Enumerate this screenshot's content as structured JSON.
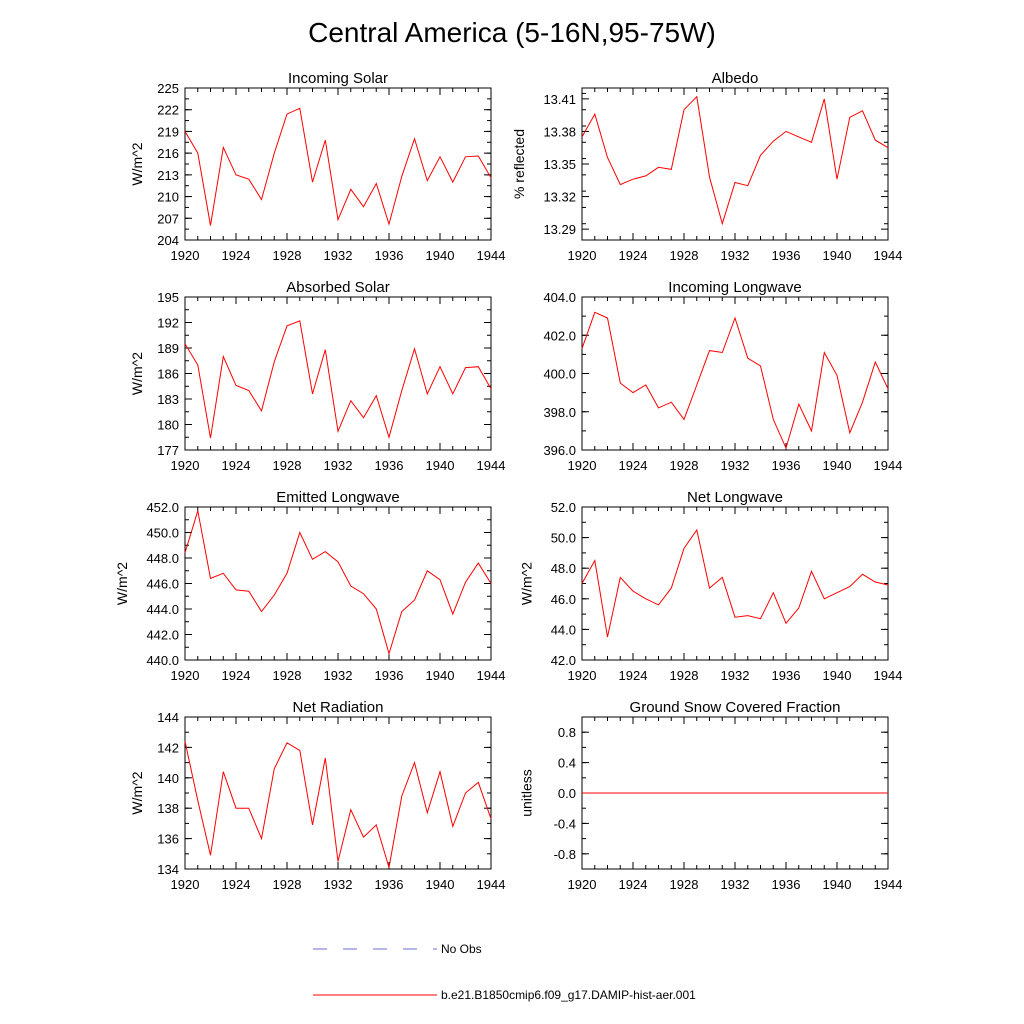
{
  "figure": {
    "title": "Central America (5-16N,95-75W)",
    "line_color": "#ff0000",
    "obs_color": "#6b6bd6"
  },
  "legend": {
    "obs_label": "No Obs",
    "model_label": "b.e21.B1850cmip6.f09_g17.DAMIP-hist-aer.001"
  },
  "chart_data": [
    {
      "type": "line",
      "title": "Incoming Solar",
      "ylabel": "W/m^2",
      "xlim": [
        1920,
        1944
      ],
      "ylim": [
        204,
        225
      ],
      "yticks": [
        "204",
        "207",
        "210",
        "213",
        "216",
        "219",
        "222",
        "225"
      ],
      "xticks": [
        "1920",
        "1924",
        "1928",
        "1932",
        "1936",
        "1940",
        "1944"
      ],
      "x": [
        1920,
        1921,
        1922,
        1923,
        1924,
        1925,
        1926,
        1927,
        1928,
        1929,
        1930,
        1931,
        1932,
        1933,
        1934,
        1935,
        1936,
        1937,
        1938,
        1939,
        1940,
        1941,
        1942,
        1943,
        1944
      ],
      "values": [
        219.0,
        216.0,
        206.0,
        216.8,
        213.0,
        212.4,
        209.6,
        216.0,
        221.4,
        222.2,
        212.0,
        217.8,
        206.8,
        211.0,
        208.6,
        211.8,
        206.2,
        212.8,
        218.0,
        212.2,
        215.5,
        212.0,
        215.5,
        215.6,
        212.6
      ]
    },
    {
      "type": "line",
      "title": "Albedo",
      "ylabel": "% reflected",
      "xlim": [
        1920,
        1944
      ],
      "ylim": [
        13.28,
        13.42
      ],
      "yticks": [
        "13.29",
        "13.32",
        "13.35",
        "13.38",
        "13.41"
      ],
      "xticks": [
        "1920",
        "1924",
        "1928",
        "1932",
        "1936",
        "1940",
        "1944"
      ],
      "x": [
        1920,
        1921,
        1922,
        1923,
        1924,
        1925,
        1926,
        1927,
        1928,
        1929,
        1930,
        1931,
        1932,
        1933,
        1934,
        1935,
        1936,
        1937,
        1938,
        1939,
        1940,
        1941,
        1942,
        1943,
        1944
      ],
      "values": [
        13.375,
        13.396,
        13.356,
        13.331,
        13.336,
        13.339,
        13.347,
        13.345,
        13.4,
        13.412,
        13.338,
        13.295,
        13.333,
        13.33,
        13.358,
        13.371,
        13.38,
        13.375,
        13.37,
        13.41,
        13.336,
        13.393,
        13.399,
        13.372,
        13.365
      ]
    },
    {
      "type": "line",
      "title": "Absorbed Solar",
      "ylabel": "W/m^2",
      "xlim": [
        1920,
        1944
      ],
      "ylim": [
        177,
        195
      ],
      "yticks": [
        "177",
        "180",
        "183",
        "186",
        "189",
        "192",
        "195"
      ],
      "xticks": [
        "1920",
        "1924",
        "1928",
        "1932",
        "1936",
        "1940",
        "1944"
      ],
      "x": [
        1920,
        1921,
        1922,
        1923,
        1924,
        1925,
        1926,
        1927,
        1928,
        1929,
        1930,
        1931,
        1932,
        1933,
        1934,
        1935,
        1936,
        1937,
        1938,
        1939,
        1940,
        1941,
        1942,
        1943,
        1944
      ],
      "values": [
        189.5,
        187.0,
        178.4,
        188.0,
        184.6,
        184.0,
        181.6,
        187.4,
        191.6,
        192.2,
        183.6,
        188.8,
        179.2,
        182.8,
        180.8,
        183.4,
        178.5,
        184.0,
        188.9,
        183.6,
        186.8,
        183.6,
        186.7,
        186.8,
        184.2
      ]
    },
    {
      "type": "line",
      "title": "Incoming Longwave",
      "ylabel": "",
      "xlim": [
        1920,
        1944
      ],
      "ylim": [
        396,
        404
      ],
      "yticks": [
        "396.0",
        "398.0",
        "400.0",
        "402.0",
        "404.0"
      ],
      "xticks": [
        "1920",
        "1924",
        "1928",
        "1932",
        "1936",
        "1940",
        "1944"
      ],
      "x": [
        1920,
        1921,
        1922,
        1923,
        1924,
        1925,
        1926,
        1927,
        1928,
        1929,
        1930,
        1931,
        1932,
        1933,
        1934,
        1935,
        1936,
        1937,
        1938,
        1939,
        1940,
        1941,
        1942,
        1943,
        1944
      ],
      "values": [
        401.3,
        403.2,
        402.9,
        399.5,
        399.0,
        399.4,
        398.2,
        398.5,
        397.6,
        399.4,
        401.2,
        401.1,
        402.9,
        400.8,
        400.4,
        397.6,
        396.1,
        398.4,
        397.0,
        401.1,
        399.9,
        396.9,
        398.5,
        400.6,
        399.2
      ]
    },
    {
      "type": "line",
      "title": "Emitted Longwave",
      "ylabel": "W/m^2",
      "xlim": [
        1920,
        1944
      ],
      "ylim": [
        440,
        452
      ],
      "yticks": [
        "440.0",
        "442.0",
        "444.0",
        "446.0",
        "448.0",
        "450.0",
        "452.0"
      ],
      "xticks": [
        "1920",
        "1924",
        "1928",
        "1932",
        "1936",
        "1940",
        "1944"
      ],
      "x": [
        1920,
        1921,
        1922,
        1923,
        1924,
        1925,
        1926,
        1927,
        1928,
        1929,
        1930,
        1931,
        1932,
        1933,
        1934,
        1935,
        1936,
        1937,
        1938,
        1939,
        1940,
        1941,
        1942,
        1943,
        1944
      ],
      "values": [
        448.4,
        451.7,
        446.4,
        446.8,
        445.5,
        445.4,
        443.8,
        445.1,
        446.8,
        450.0,
        447.9,
        448.5,
        447.7,
        445.8,
        445.2,
        444.0,
        440.5,
        443.8,
        444.7,
        447.0,
        446.3,
        443.6,
        446.1,
        447.6,
        446.0
      ]
    },
    {
      "type": "line",
      "title": "Net Longwave",
      "ylabel": "W/m^2",
      "xlim": [
        1920,
        1944
      ],
      "ylim": [
        42,
        52
      ],
      "yticks": [
        "42.0",
        "44.0",
        "46.0",
        "48.0",
        "50.0",
        "52.0"
      ],
      "xticks": [
        "1920",
        "1924",
        "1928",
        "1932",
        "1936",
        "1940",
        "1944"
      ],
      "x": [
        1920,
        1921,
        1922,
        1923,
        1924,
        1925,
        1926,
        1927,
        1928,
        1929,
        1930,
        1931,
        1932,
        1933,
        1934,
        1935,
        1936,
        1937,
        1938,
        1939,
        1940,
        1941,
        1942,
        1943,
        1944
      ],
      "values": [
        47.0,
        48.5,
        43.5,
        47.4,
        46.5,
        46.0,
        45.6,
        46.7,
        49.3,
        50.5,
        46.7,
        47.4,
        44.8,
        44.9,
        44.7,
        46.4,
        44.4,
        45.4,
        47.8,
        46.0,
        46.4,
        46.8,
        47.6,
        47.1,
        46.9
      ]
    },
    {
      "type": "line",
      "title": "Net Radiation",
      "ylabel": "W/m^2",
      "xlim": [
        1920,
        1944
      ],
      "ylim": [
        134,
        144
      ],
      "yticks": [
        "134",
        "136",
        "138",
        "140",
        "142",
        "144"
      ],
      "xticks": [
        "1920",
        "1924",
        "1928",
        "1932",
        "1936",
        "1940",
        "1944"
      ],
      "x": [
        1920,
        1921,
        1922,
        1923,
        1924,
        1925,
        1926,
        1927,
        1928,
        1929,
        1930,
        1931,
        1932,
        1933,
        1934,
        1935,
        1936,
        1937,
        1938,
        1939,
        1940,
        1941,
        1942,
        1943,
        1944
      ],
      "values": [
        142.4,
        138.5,
        134.9,
        140.4,
        138.0,
        138.0,
        136.0,
        140.6,
        142.3,
        141.8,
        136.9,
        141.3,
        134.5,
        137.9,
        136.1,
        136.9,
        134.1,
        138.8,
        141.0,
        137.7,
        140.4,
        136.8,
        139.0,
        139.7,
        137.3
      ]
    },
    {
      "type": "line",
      "title": "Ground Snow Covered Fraction",
      "ylabel": "unitless",
      "xlim": [
        1920,
        1944
      ],
      "ylim": [
        -1.0,
        1.0
      ],
      "yticks": [
        "-0.8",
        "-0.4",
        "0.0",
        "0.4",
        "0.8"
      ],
      "xticks": [
        "1920",
        "1924",
        "1928",
        "1932",
        "1936",
        "1940",
        "1944"
      ],
      "x": [
        1920,
        1944
      ],
      "values": [
        0.0,
        0.0
      ]
    }
  ]
}
